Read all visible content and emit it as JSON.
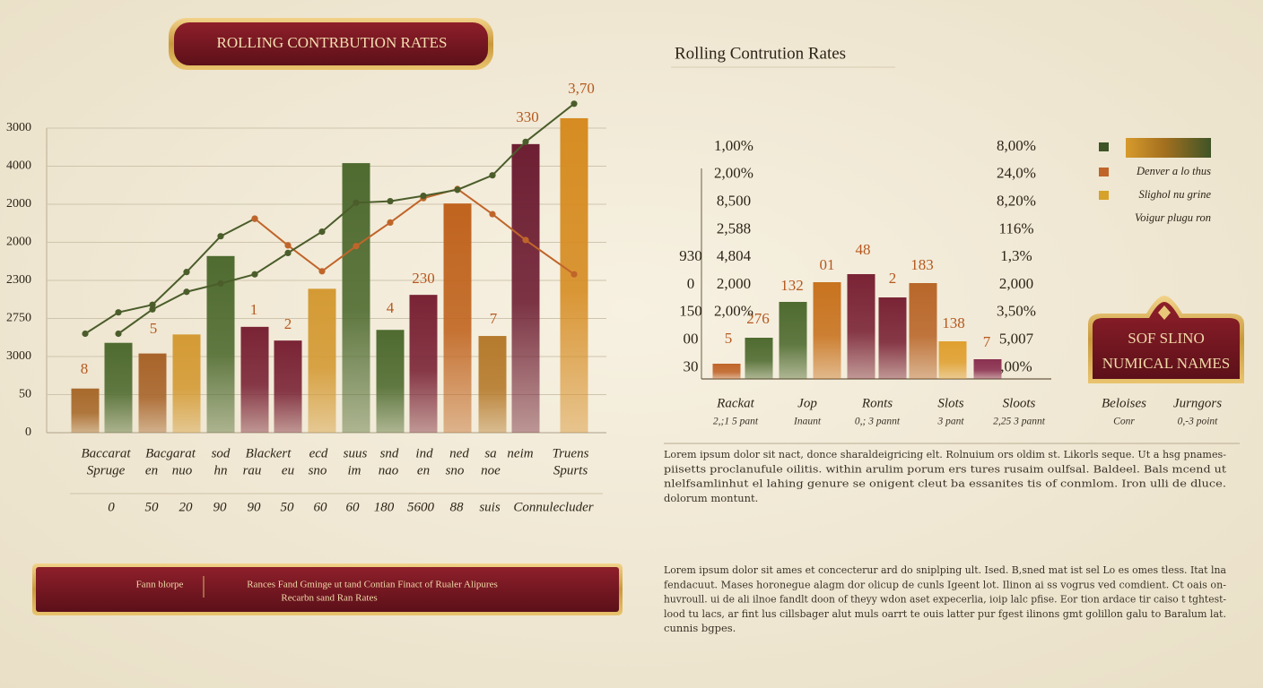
{
  "chart_data": [
    {
      "type": "bar",
      "title": "ROLLING CONTRBUTION RATES",
      "categories": [
        null,
        null,
        null,
        null,
        null,
        null,
        null,
        null,
        null,
        null,
        null,
        null,
        null,
        null,
        null
      ],
      "values": [
        58,
        118,
        104,
        129,
        232,
        139,
        121,
        189,
        354,
        135,
        181,
        301,
        127,
        379,
        413
      ],
      "colors": [
        "#a86a2c",
        "#4f6b30",
        "#a8642a",
        "#d49a34",
        "#4f6b30",
        "#7a2436",
        "#7a2436",
        "#d49a34",
        "#4f6b30",
        "#4f6b30",
        "#7a2436",
        "#c0641f",
        "#b57a2c",
        "#6e1f33",
        "#d68c22"
      ],
      "lines": [
        {
          "color": "#4b5d2b",
          "values": [
            130,
            158,
            168,
            211,
            258,
            281,
            null,
            null,
            null,
            null,
            null,
            null,
            null,
            null,
            null
          ]
        },
        {
          "color": "#c0652a",
          "values": [
            null,
            null,
            null,
            null,
            null,
            281,
            246,
            212,
            245,
            276,
            308,
            320,
            287,
            253,
            208
          ]
        },
        {
          "color": "#4b5d2b",
          "values": [
            null,
            130,
            162,
            185,
            196,
            208,
            236,
            264,
            302,
            304,
            311,
            319,
            338,
            382,
            432
          ]
        }
      ],
      "annotations": [
        "8",
        "5",
        "1",
        "2",
        "4",
        "230",
        "7",
        "330",
        "3,70"
      ],
      "ylim": [
        0,
        440
      ],
      "yticks": [
        0,
        50,
        {
          "value": 100,
          "label": "3000"
        },
        {
          "value": 150,
          "label": "2750"
        },
        {
          "value": 200,
          "label": "2300"
        },
        {
          "value": 250,
          "label": "2000"
        },
        {
          "value": 300,
          "label": "2000"
        },
        {
          "value": 350,
          "label": "4000"
        },
        {
          "value": 400,
          "label": "3000"
        }
      ],
      "grid": true,
      "x_label_rows": [
        [
          "Baccarat",
          "Bacgarat",
          "sod",
          "Blackert",
          "ecd",
          "suus",
          "snd",
          "ind",
          "ned",
          "sa",
          "neim",
          "Truens"
        ],
        [
          "Spruge",
          "en",
          "nuo",
          "hn",
          "rau",
          "eu",
          "sno",
          "im",
          "nao",
          "en",
          "sno",
          "noe",
          "Spurts"
        ],
        [
          "0",
          "50",
          "20",
          "90",
          "90",
          "50",
          "60",
          "60",
          "180",
          "5600",
          "88",
          "suis",
          "Connulecluder"
        ]
      ]
    },
    {
      "type": "bar",
      "title": "Rolling Contrution Rates",
      "categories": [
        null,
        null,
        null,
        null,
        null,
        null,
        null,
        null,
        null
      ],
      "values": [
        17,
        46,
        86,
        108,
        117,
        91,
        107,
        42,
        22
      ],
      "colors": [
        "#c0652a",
        "#4f6b30",
        "#4f6b30",
        "#c8731f",
        "#7a2436",
        "#7a2436",
        "#b9672a",
        "#e0a030",
        "#8a3050"
      ],
      "ylim": [
        0,
        140
      ],
      "annotations": [
        "5",
        "276",
        "132",
        "01",
        "48",
        "2",
        "183",
        "138",
        "7"
      ],
      "label_columns": [
        [
          "930",
          "0",
          "150",
          "00",
          "30"
        ],
        [
          "1,00%",
          "2,00%",
          "8,500",
          "2,588",
          "4,804",
          "2,000",
          "2,00%"
        ],
        [
          "8,00%",
          "24,0%",
          "8,20%",
          "116%",
          "1,3%",
          "2,000",
          "3,50%",
          "5,007",
          ",00%"
        ]
      ],
      "x_labels": [
        {
          "name": "Rackat",
          "sub": "2,;1 5 pant"
        },
        {
          "name": "Jop",
          "sub": "Inaunt"
        },
        {
          "name": "Ronts",
          "sub": "0,; 3 pannt"
        },
        {
          "name": "Slots",
          "sub": "3 pant"
        },
        {
          "name": "Sloots",
          "sub": "2,25 3 pannt"
        },
        {
          "name": "Beloises",
          "sub": "Conr"
        },
        {
          "name": "Jurngors",
          "sub": "0,-3 point"
        }
      ],
      "legend": [
        {
          "color": "#3f5427"
        },
        {
          "color": "#c0652a",
          "label": "Denver a lo thus"
        },
        {
          "color": "#d6a22a",
          "label": "Slighol nu grine"
        },
        {
          "label": "Voigur plugu ron"
        }
      ]
    }
  ],
  "footer_banner": {
    "label": "Fann blorpe",
    "lines": [
      "Rances Fand Gminge ut tand Contian Finact of Rualer Alipures",
      "Recarbn sand Ran Rates"
    ]
  },
  "badge": {
    "lines": [
      "SOF SLINO",
      "NUMICAL NAMES"
    ]
  },
  "paragraphs": [
    [
      "Lorem ipsum dolor sit nact, donce sharaldeigricing elt. Rolnuium ors oldim st. Likorls seque. Ut a hsg pnames-",
      "piisetts proclanufule oilitis. within arulim porum ers tures rusaim oulfsal. Baldeel. Bals mcend ut",
      "nlelfsamlinhut el lahing genure se onigent cleut ba essanites tis of conmlom. Iron ulli de dluce.",
      "dolorum montunt."
    ],
    [
      "Lorem ipsum dolor sit ames et concecterur ard do sniplping ult. Ised. B,sned mat ist sel Lo es omes tless. Itat lna",
      "fendacuut. Mases horonegue alagm dor olicup de cunls Igeent lot. Ilinon ai ss vogrus ved comdient. Ct oais on-",
      "huvroull. ui de ali ilnoe fandlt doon of theyy wdon aset expecerlia, ioip lalc pfise. Eor tion ardace tir caiso t tghtest-",
      "lood tu lacs, ar fint lus cillsbager alut muls oarrt te ouis latter pur fgest ilinons gmt golillon galu to Baralum lat.",
      "cunnis bgpes."
    ]
  ]
}
